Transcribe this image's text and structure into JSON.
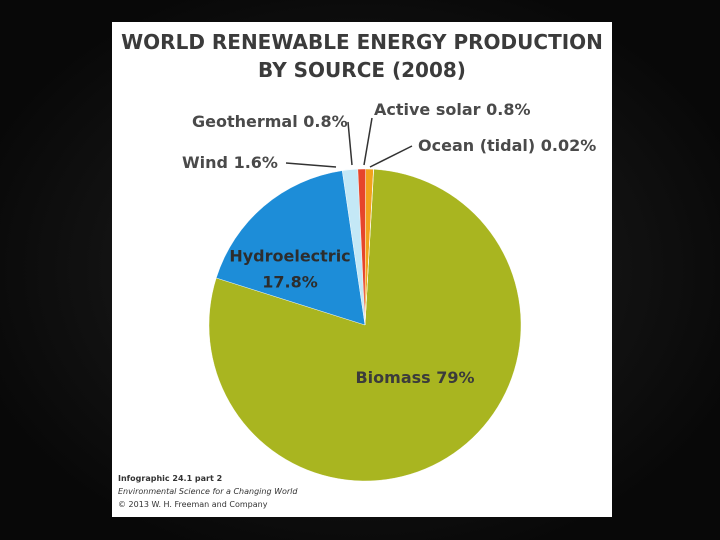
{
  "chart_data": {
    "type": "pie",
    "title": "WORLD RENEWABLE ENERGY PRODUCTION BY SOURCE (2008)",
    "categories": [
      "Biomass",
      "Hydroelectric",
      "Wind",
      "Geothermal",
      "Active solar",
      "Ocean (tidal)"
    ],
    "values": [
      79,
      17.8,
      1.6,
      0.8,
      0.8,
      0.02
    ],
    "value_labels": [
      "79%",
      "17.8%",
      "1.6%",
      "0.8%",
      "0.8%",
      "0.02%"
    ],
    "colors": [
      "#a9b520",
      "#1d8dd8",
      "#c4e8f6",
      "#e6452b",
      "#f2a31b",
      "#f4d21f"
    ],
    "footer": [
      "Infographic 24.1 part 2",
      "Environmental Science for a Changing World",
      "© 2013 W. H. Freeman and Company"
    ]
  }
}
